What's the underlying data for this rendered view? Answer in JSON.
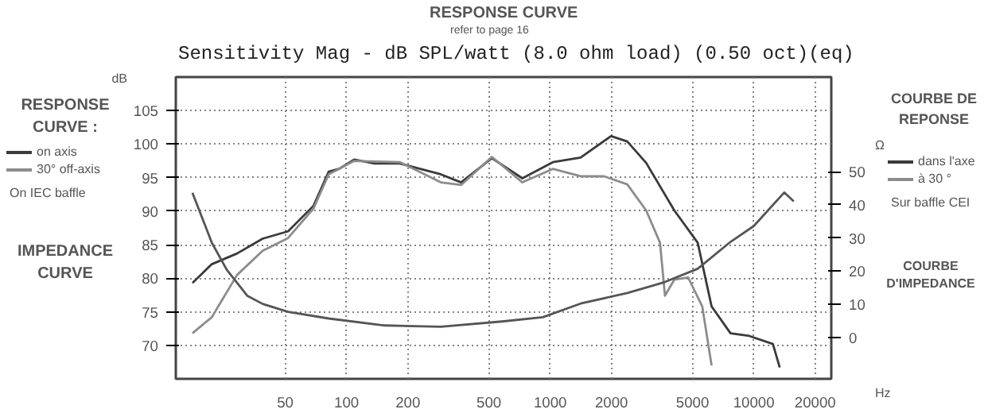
{
  "chart_data": {
    "type": "line",
    "title": "RESPONSE CURVE",
    "subtitle": "refer to page 16",
    "xlabel": "Hz",
    "ylabel": "dB",
    "y2label": "Ω",
    "annotations": [
      "Sensitivity Mag - dB SPL/watt (8.0 ohm load) (0.50 oct)(eq)",
      "RESPONSE CURVE :",
      "On IEC baffle",
      "IMPEDANCE CURVE",
      "COURBE DE REPONSE",
      "dans l'axe",
      "à 30 °",
      "Sur baffle CEI",
      "COURBE D'IMPEDANCE"
    ],
    "log": "x",
    "grid": true,
    "legend": "left",
    "marker": "none",
    "line_style": "solid",
    "xlim": [
      14.5,
      24000
    ],
    "xticks": [
      50,
      100,
      200,
      500,
      1000,
      2000,
      5000,
      10000,
      20000
    ],
    "ylim": [
      65,
      110
    ],
    "yticks": [
      70,
      75,
      80,
      85,
      90,
      95,
      100,
      105
    ],
    "y2lim": [
      -12.5,
      78.5
    ],
    "y2ticks": [
      0,
      10,
      20,
      30,
      40,
      50
    ],
    "series": [
      {
        "name": "on axis",
        "color": "#3a3a3a",
        "x": [
          17.5,
          21.8,
          29,
          38.7,
          51.6,
          68.8,
          81.7,
          91.7,
          109,
          137,
          183,
          230,
          290,
          365,
          517,
          730,
          1030,
          1410,
          1990,
          2390,
          2960,
          4070,
          5300,
          6200,
          7680,
          9490,
          12400,
          13400
        ],
        "values": [
          79.3,
          82.1,
          83.7,
          85.9,
          87,
          90.8,
          95.9,
          96.3,
          97.7,
          97.1,
          97.1,
          96.3,
          95.5,
          94.3,
          97.9,
          94.9,
          97.3,
          98,
          101.2,
          100.4,
          97.2,
          90.1,
          85.3,
          75.8,
          71.8,
          71.4,
          70.2,
          66.7
        ]
      },
      {
        "name": "30° off-axis",
        "color": "#8c8c8c",
        "x": [
          17.5,
          21.8,
          29,
          38.7,
          51.6,
          68.8,
          81.7,
          109,
          183,
          290,
          365,
          517,
          730,
          1030,
          1410,
          1840,
          2390,
          2960,
          3460,
          3660,
          4070,
          4760,
          5580,
          6200
        ],
        "values": [
          71.8,
          74.2,
          80.5,
          84.1,
          86,
          90.4,
          95.5,
          97.5,
          97.3,
          94.3,
          93.9,
          98.1,
          94.3,
          96.3,
          95.2,
          95.2,
          94,
          90.1,
          85.3,
          77.4,
          79.8,
          80.1,
          75.8,
          67
        ]
      },
      {
        "color": "#555555",
        "axis": "y2",
        "x": [
          17.5,
          21.8,
          25.8,
          32.6,
          38.7,
          51.6,
          81.7,
          154,
          290,
          580,
          920,
          1410,
          2395,
          3660,
          5300,
          7680,
          10000,
          14100,
          15700
        ],
        "values": [
          43.6,
          28.5,
          20.4,
          12.5,
          10.1,
          7.7,
          5.7,
          3.6,
          3.2,
          4.8,
          6.1,
          10.2,
          13.4,
          16.7,
          20.7,
          28.8,
          33.6,
          43.7,
          41
        ]
      }
    ]
  }
}
